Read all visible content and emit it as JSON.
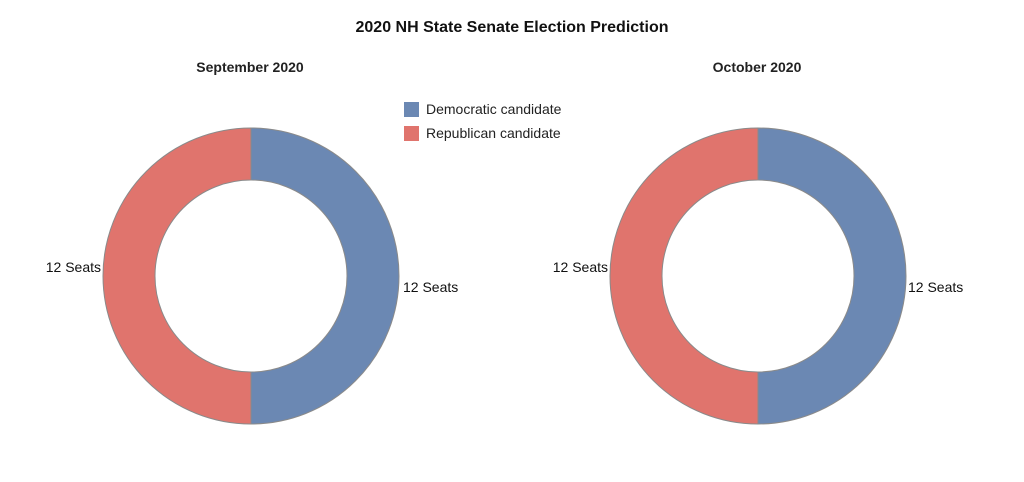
{
  "chart_data": {
    "type": "pie",
    "title": "2020 NH State Senate Election Prediction",
    "colors": {
      "Democratic candidate": "#6b88b3",
      "Republican candidate": "#e0746d"
    },
    "legend": {
      "position": "top-center",
      "items": [
        "Democratic candidate",
        "Republican candidate"
      ]
    },
    "charts": [
      {
        "subtitle": "September 2020",
        "slices": [
          {
            "name": "Democratic candidate",
            "value": 12,
            "label": "12 Seats"
          },
          {
            "name": "Republican candidate",
            "value": 12,
            "label": "12 Seats"
          }
        ]
      },
      {
        "subtitle": "October 2020",
        "slices": [
          {
            "name": "Democratic candidate",
            "value": 12,
            "label": "12 Seats"
          },
          {
            "name": "Republican candidate",
            "value": 12,
            "label": "12 Seats"
          }
        ]
      }
    ]
  }
}
